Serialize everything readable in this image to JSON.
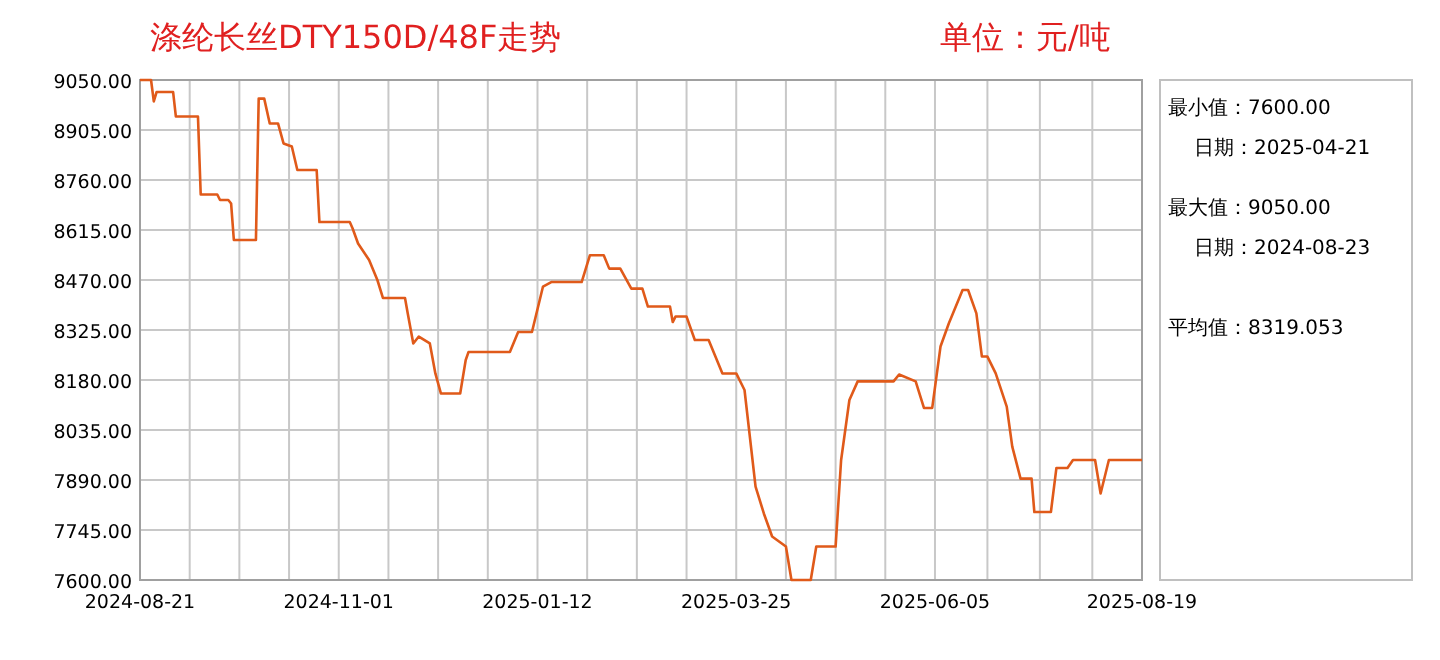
{
  "chart_data": {
    "type": "line",
    "title": "涤纶长丝DTY150D/48F走势",
    "subtitle": "单位：元/吨",
    "annotations": [
      "最小值：7600.00",
      "日期：2025-04-21",
      "最大值：9050.00",
      "日期：2024-08-23",
      "平均值：8319.053"
    ],
    "x": [
      "2024-08-21",
      "2024-08-25",
      "2024-08-26",
      "2024-08-27",
      "2024-09-02",
      "2024-09-03",
      "2024-09-11",
      "2024-09-12",
      "2024-09-18",
      "2024-09-19",
      "2024-09-22",
      "2024-09-23",
      "2024-09-24",
      "2024-10-02",
      "2024-10-03",
      "2024-10-05",
      "2024-10-07",
      "2024-10-10",
      "2024-10-12",
      "2024-10-15",
      "2024-10-17",
      "2024-10-24",
      "2024-10-25",
      "2024-11-05",
      "2024-11-06",
      "2024-11-08",
      "2024-11-12",
      "2024-11-15",
      "2024-11-17",
      "2024-11-25",
      "2024-11-26",
      "2024-11-28",
      "2024-11-30",
      "2024-12-04",
      "2024-12-06",
      "2024-12-08",
      "2024-12-15",
      "2024-12-17",
      "2024-12-18",
      "2025-01-02",
      "2025-01-05",
      "2025-01-10",
      "2025-01-14",
      "2025-01-17",
      "2025-01-28",
      "2025-01-31",
      "2025-02-05",
      "2025-02-07",
      "2025-02-11",
      "2025-02-15",
      "2025-02-19",
      "2025-02-21",
      "2025-03-01",
      "2025-03-02",
      "2025-03-03",
      "2025-03-07",
      "2025-03-10",
      "2025-03-15",
      "2025-03-20",
      "2025-03-25",
      "2025-03-28",
      "2025-04-01",
      "2025-04-04",
      "2025-04-07",
      "2025-04-12",
      "2025-04-14",
      "2025-04-21",
      "2025-04-23",
      "2025-04-30",
      "2025-05-02",
      "2025-05-05",
      "2025-05-08",
      "2025-05-21",
      "2025-05-23",
      "2025-05-29",
      "2025-06-01",
      "2025-06-04",
      "2025-06-07",
      "2025-06-10",
      "2025-06-15",
      "2025-06-17",
      "2025-06-20",
      "2025-06-22",
      "2025-06-24",
      "2025-06-27",
      "2025-07-01",
      "2025-07-03",
      "2025-07-06",
      "2025-07-10",
      "2025-07-11",
      "2025-07-17",
      "2025-07-19",
      "2025-07-23",
      "2025-07-25",
      "2025-08-02",
      "2025-08-04",
      "2025-08-07",
      "2025-08-19"
    ],
    "series": [
      {
        "color": "#e05a1a",
        "values": [
          9050,
          9050,
          8988,
          9015,
          9015,
          8944,
          8944,
          8718,
          8718,
          8702,
          8702,
          8692,
          8586,
          8586,
          8996,
          8996,
          8924,
          8924,
          8866,
          8857,
          8789,
          8789,
          8638,
          8638,
          8620,
          8576,
          8528,
          8470,
          8418,
          8418,
          8373,
          8286,
          8306,
          8286,
          8199,
          8141,
          8141,
          8238,
          8261,
          8261,
          8319,
          8319,
          8451,
          8464,
          8464,
          8542,
          8542,
          8503,
          8503,
          8445,
          8445,
          8393,
          8393,
          8348,
          8364,
          8364,
          8296,
          8296,
          8199,
          8199,
          8151,
          7871,
          7793,
          7726,
          7697,
          7600,
          7600,
          7697,
          7697,
          7948,
          8122,
          8176,
          8176,
          8196,
          8176,
          8099,
          8099,
          8277,
          8344,
          8441,
          8441,
          8373,
          8248,
          8248,
          8199,
          8103,
          7987,
          7894,
          7894,
          7797,
          7797,
          7925,
          7925,
          7948,
          7948,
          7851,
          7948,
          7948
        ]
      }
    ],
    "xlim": [
      "2024-08-21",
      "2025-08-19"
    ],
    "xticks": [
      {
        "value": "2024-08-21",
        "label": "2024-08-21"
      },
      {
        "value": "2024-09-08",
        "label": null
      },
      {
        "value": "2024-09-26",
        "label": null
      },
      {
        "value": "2024-10-14",
        "label": null
      },
      {
        "value": "2024-11-01",
        "label": "2024-11-01"
      },
      {
        "value": "2024-11-19",
        "label": null
      },
      {
        "value": "2024-12-07",
        "label": null
      },
      {
        "value": "2024-12-25",
        "label": null
      },
      {
        "value": "2025-01-12",
        "label": "2025-01-12"
      },
      {
        "value": "2025-01-30",
        "label": null
      },
      {
        "value": "2025-02-17",
        "label": null
      },
      {
        "value": "2025-03-07",
        "label": null
      },
      {
        "value": "2025-03-25",
        "label": "2025-03-25"
      },
      {
        "value": "2025-04-12",
        "label": null
      },
      {
        "value": "2025-04-30",
        "label": null
      },
      {
        "value": "2025-05-18",
        "label": null
      },
      {
        "value": "2025-06-05",
        "label": "2025-06-05"
      },
      {
        "value": "2025-06-24",
        "label": null
      },
      {
        "value": "2025-07-13",
        "label": null
      },
      {
        "value": "2025-08-01",
        "label": null
      },
      {
        "value": "2025-08-19",
        "label": "2025-08-19"
      }
    ],
    "ylim": [
      7600,
      9050
    ],
    "yticks": [
      {
        "value": 7600,
        "label": "7600.00"
      },
      {
        "value": 7745,
        "label": "7745.00"
      },
      {
        "value": 7890,
        "label": "7890.00"
      },
      {
        "value": 8035,
        "label": "8035.00"
      },
      {
        "value": 8180,
        "label": "8180.00"
      },
      {
        "value": 8325,
        "label": "8325.00"
      },
      {
        "value": 8470,
        "label": "8470.00"
      },
      {
        "value": 8615,
        "label": "8615.00"
      },
      {
        "value": 8760,
        "label": "8760.00"
      },
      {
        "value": 8905,
        "label": "8905.00"
      },
      {
        "value": 9050,
        "label": "9050.00"
      }
    ],
    "grid": true
  }
}
